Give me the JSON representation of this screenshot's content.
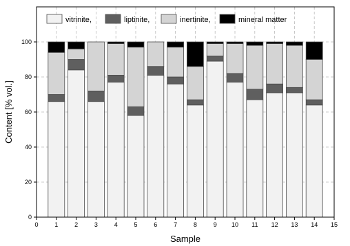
{
  "chart_data": {
    "type": "bar",
    "stacked": true,
    "xlabel": "Sample",
    "ylabel": "Content [% vol.]",
    "xlim": [
      0,
      15
    ],
    "ylim": [
      0,
      120
    ],
    "x_ticks": [
      "0",
      "1",
      "2",
      "3",
      "4",
      "5",
      "6",
      "7",
      "8",
      "9",
      "10",
      "11",
      "12",
      "13",
      "14",
      "15"
    ],
    "y_ticks": [
      "0",
      "20",
      "40",
      "60",
      "80",
      "100"
    ],
    "grid": true,
    "legend_position": "top",
    "x": [
      1,
      2,
      3,
      4,
      5,
      6,
      7,
      8,
      9,
      10,
      11,
      12,
      13,
      14
    ],
    "series": [
      {
        "name": "vitrinite,",
        "color": "#f2f2f2",
        "values": [
          66,
          84,
          66,
          77,
          58,
          81,
          76,
          64,
          89,
          77,
          67,
          71,
          71,
          64
        ]
      },
      {
        "name": "liptinite,",
        "color": "#5f5f5f",
        "values": [
          4,
          6,
          6,
          4,
          5,
          5,
          4,
          3,
          3,
          5,
          6,
          5,
          3,
          3
        ]
      },
      {
        "name": "inertinite,",
        "color": "#d4d4d4",
        "values": [
          24,
          6,
          28,
          18,
          34,
          14,
          17,
          19,
          7,
          17,
          25,
          23,
          24,
          23
        ]
      },
      {
        "name": "mineral matter",
        "color": "#000000",
        "values": [
          6,
          4,
          0,
          1,
          3,
          0,
          3,
          14,
          1,
          1,
          2,
          1,
          2,
          10
        ]
      }
    ]
  }
}
